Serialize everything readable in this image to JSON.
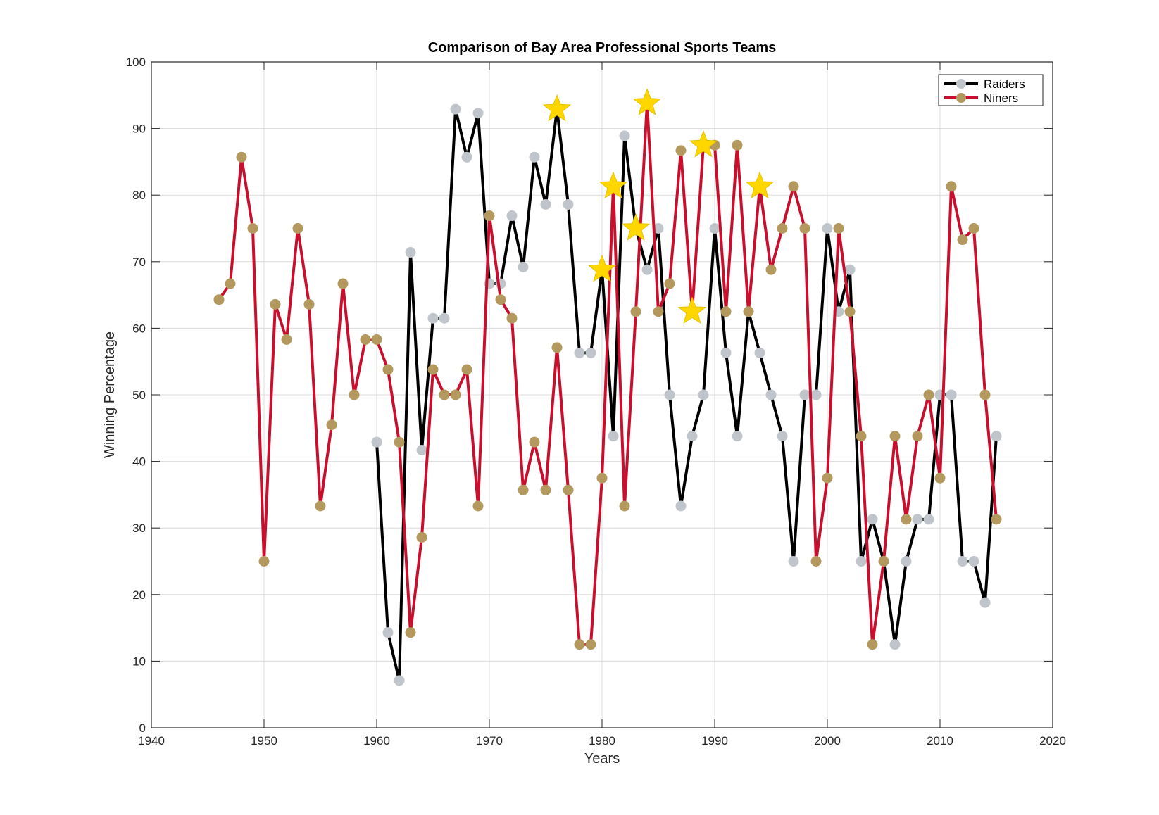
{
  "chart_data": {
    "type": "line",
    "title": "Comparison of Bay Area Professional Sports Teams",
    "xlabel": "Years",
    "ylabel": "Winning Percentage",
    "xlim": [
      1940,
      2020
    ],
    "ylim": [
      0,
      100
    ],
    "xticks": [
      1940,
      1950,
      1960,
      1970,
      1980,
      1990,
      2000,
      2010,
      2020
    ],
    "yticks": [
      0,
      10,
      20,
      30,
      40,
      50,
      60,
      70,
      80,
      90,
      100
    ],
    "grid": true,
    "legend_position": "top-right",
    "series": [
      {
        "name": "Raiders",
        "line_color": "#000000",
        "marker_color": "#c0c5cb",
        "points": [
          [
            1960,
            42.9
          ],
          [
            1961,
            14.3
          ],
          [
            1962,
            7.1
          ],
          [
            1963,
            71.4
          ],
          [
            1964,
            41.7
          ],
          [
            1965,
            61.5
          ],
          [
            1966,
            61.5
          ],
          [
            1967,
            92.9
          ],
          [
            1968,
            85.7
          ],
          [
            1969,
            92.3
          ],
          [
            1970,
            66.7
          ],
          [
            1971,
            66.7
          ],
          [
            1972,
            76.9
          ],
          [
            1973,
            69.2
          ],
          [
            1974,
            85.7
          ],
          [
            1975,
            78.6
          ],
          [
            1976,
            92.9
          ],
          [
            1977,
            78.6
          ],
          [
            1978,
            56.3
          ],
          [
            1979,
            56.3
          ],
          [
            1980,
            68.8
          ],
          [
            1981,
            43.8
          ],
          [
            1982,
            88.9
          ],
          [
            1983,
            75.0
          ],
          [
            1984,
            68.8
          ],
          [
            1985,
            75.0
          ],
          [
            1986,
            50.0
          ],
          [
            1987,
            33.3
          ],
          [
            1988,
            43.8
          ],
          [
            1989,
            50.0
          ],
          [
            1990,
            75.0
          ],
          [
            1991,
            56.3
          ],
          [
            1992,
            43.8
          ],
          [
            1993,
            62.5
          ],
          [
            1994,
            56.3
          ],
          [
            1995,
            50.0
          ],
          [
            1996,
            43.8
          ],
          [
            1997,
            25.0
          ],
          [
            1998,
            50.0
          ],
          [
            1999,
            50.0
          ],
          [
            2000,
            75.0
          ],
          [
            2001,
            62.5
          ],
          [
            2002,
            68.8
          ],
          [
            2003,
            25.0
          ],
          [
            2004,
            31.3
          ],
          [
            2005,
            25.0
          ],
          [
            2006,
            12.5
          ],
          [
            2007,
            25.0
          ],
          [
            2008,
            31.3
          ],
          [
            2009,
            31.3
          ],
          [
            2010,
            50.0
          ],
          [
            2011,
            50.0
          ],
          [
            2012,
            25.0
          ],
          [
            2013,
            25.0
          ],
          [
            2014,
            18.8
          ],
          [
            2015,
            43.8
          ]
        ]
      },
      {
        "name": "Niners",
        "line_color": "#c8102e",
        "marker_color": "#b3995d",
        "points": [
          [
            1946,
            64.3
          ],
          [
            1947,
            66.7
          ],
          [
            1948,
            85.7
          ],
          [
            1949,
            75.0
          ],
          [
            1950,
            25.0
          ],
          [
            1951,
            63.6
          ],
          [
            1952,
            58.3
          ],
          [
            1953,
            75.0
          ],
          [
            1954,
            63.6
          ],
          [
            1955,
            33.3
          ],
          [
            1956,
            45.5
          ],
          [
            1957,
            66.7
          ],
          [
            1958,
            50.0
          ],
          [
            1959,
            58.3
          ],
          [
            1960,
            58.3
          ],
          [
            1961,
            53.8
          ],
          [
            1962,
            42.9
          ],
          [
            1963,
            14.3
          ],
          [
            1964,
            28.6
          ],
          [
            1965,
            53.8
          ],
          [
            1966,
            50.0
          ],
          [
            1967,
            50.0
          ],
          [
            1968,
            53.8
          ],
          [
            1969,
            33.3
          ],
          [
            1970,
            76.9
          ],
          [
            1971,
            64.3
          ],
          [
            1972,
            61.5
          ],
          [
            1973,
            35.7
          ],
          [
            1974,
            42.9
          ],
          [
            1975,
            35.7
          ],
          [
            1976,
            57.1
          ],
          [
            1977,
            35.7
          ],
          [
            1978,
            12.5
          ],
          [
            1979,
            12.5
          ],
          [
            1980,
            37.5
          ],
          [
            1981,
            81.3
          ],
          [
            1982,
            33.3
          ],
          [
            1983,
            62.5
          ],
          [
            1984,
            93.8
          ],
          [
            1985,
            62.5
          ],
          [
            1986,
            66.7
          ],
          [
            1987,
            86.7
          ],
          [
            1988,
            62.5
          ],
          [
            1989,
            87.5
          ],
          [
            1990,
            87.5
          ],
          [
            1991,
            62.5
          ],
          [
            1992,
            87.5
          ],
          [
            1993,
            62.5
          ],
          [
            1994,
            81.3
          ],
          [
            1995,
            68.8
          ],
          [
            1996,
            75.0
          ],
          [
            1997,
            81.3
          ],
          [
            1998,
            75.0
          ],
          [
            1999,
            25.0
          ],
          [
            2000,
            37.5
          ],
          [
            2001,
            75.0
          ],
          [
            2002,
            62.5
          ],
          [
            2003,
            43.8
          ],
          [
            2004,
            12.5
          ],
          [
            2005,
            25.0
          ],
          [
            2006,
            43.8
          ],
          [
            2007,
            31.3
          ],
          [
            2008,
            43.8
          ],
          [
            2009,
            50.0
          ],
          [
            2010,
            37.5
          ],
          [
            2011,
            81.3
          ],
          [
            2012,
            73.3
          ],
          [
            2013,
            75.0
          ],
          [
            2014,
            50.0
          ],
          [
            2015,
            31.3
          ]
        ]
      }
    ],
    "stars": {
      "color": "#ffd700",
      "points": [
        [
          1976,
          92.9
        ],
        [
          1980,
          68.8
        ],
        [
          1981,
          81.3
        ],
        [
          1983,
          75.0
        ],
        [
          1984,
          93.8
        ],
        [
          1988,
          62.5
        ],
        [
          1989,
          87.5
        ],
        [
          1994,
          81.3
        ]
      ]
    }
  }
}
